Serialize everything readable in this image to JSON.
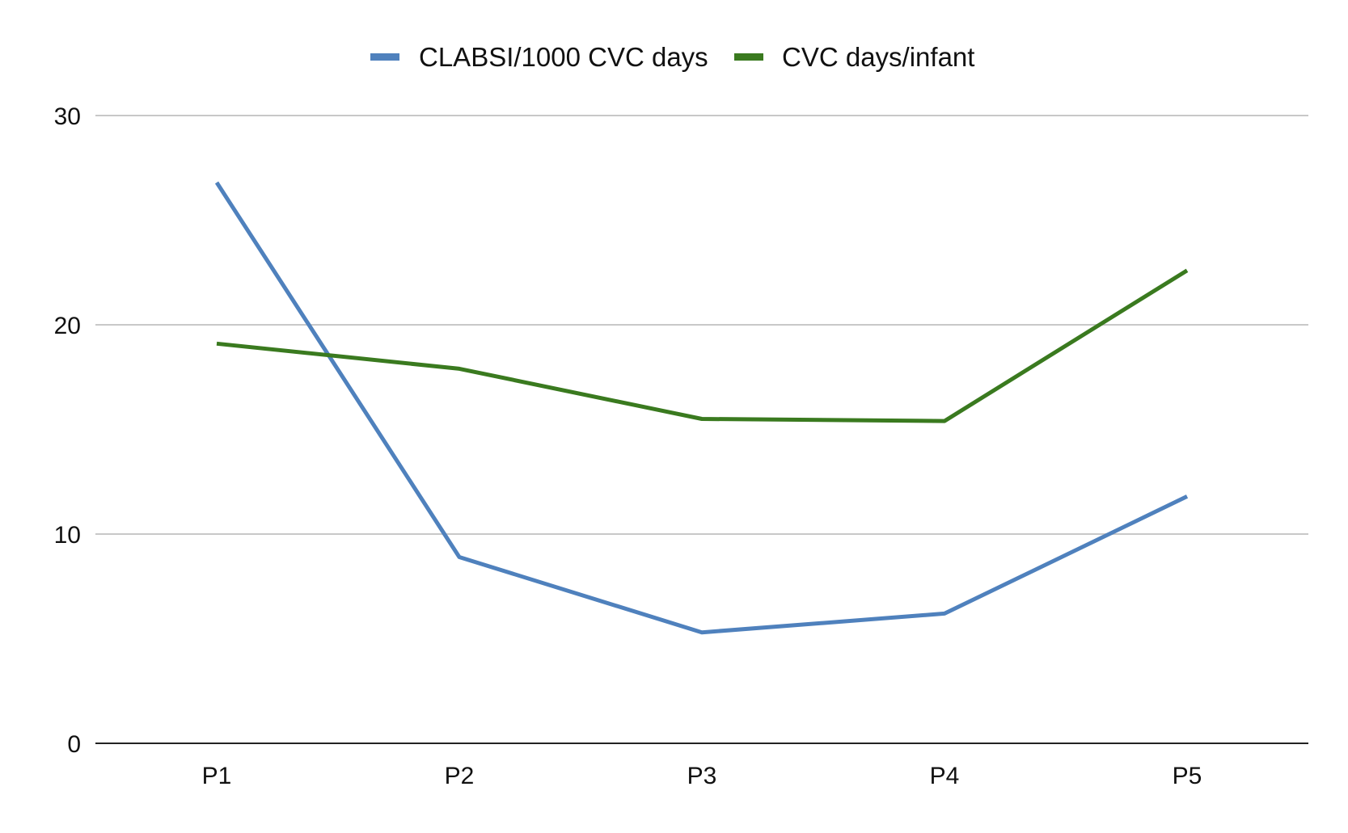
{
  "chart_data": {
    "type": "line",
    "categories": [
      "P1",
      "P2",
      "P3",
      "P4",
      "P5"
    ],
    "series": [
      {
        "name": "CLABSI/1000 CVC days",
        "color": "#4f81bd",
        "values": [
          26.8,
          8.9,
          5.3,
          6.2,
          11.8
        ]
      },
      {
        "name": "CVC days/infant",
        "color": "#3a7a1f",
        "values": [
          19.1,
          17.9,
          15.5,
          15.4,
          22.6
        ]
      }
    ],
    "ylim": [
      0,
      30
    ],
    "yticks": [
      "0",
      "10",
      "20",
      "30"
    ],
    "title": "",
    "xlabel": "",
    "ylabel": "",
    "grid": true,
    "legend_position": "top-center",
    "gridline_color": "#c8c8c8",
    "axis_color": "#222222"
  }
}
